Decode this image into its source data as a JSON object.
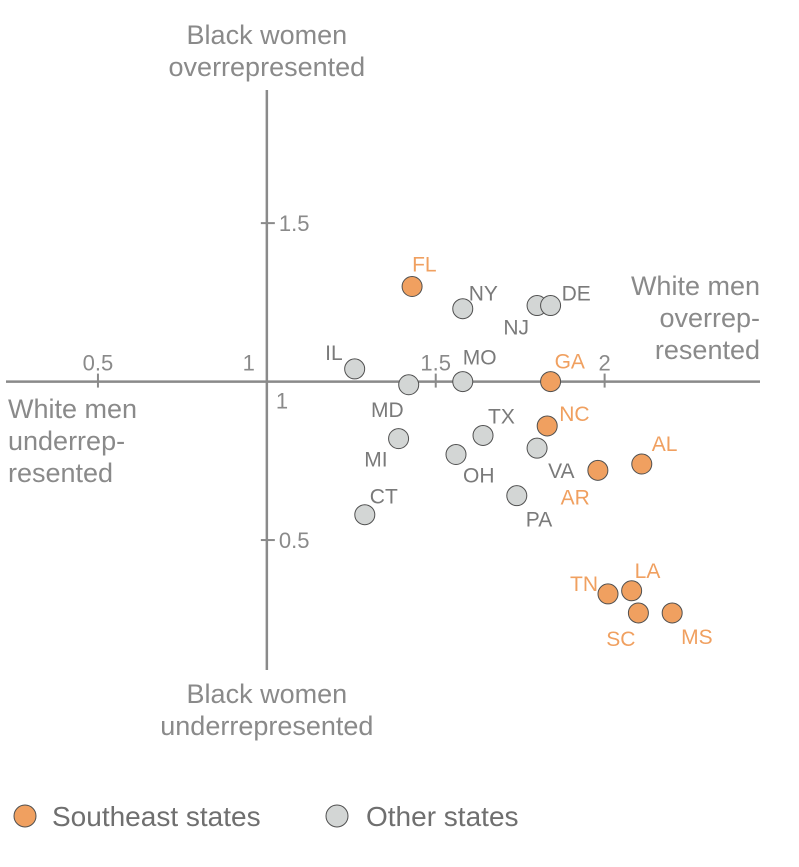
{
  "chart_data": {
    "type": "scatter",
    "axis_titles": {
      "top": [
        "Black women",
        "overrepresented"
      ],
      "bottom": [
        "Black women",
        "underrepresented"
      ],
      "right": [
        "White men",
        "overrep-",
        "resented"
      ],
      "left": [
        "White men",
        "underrep-",
        "resented"
      ]
    },
    "x_ticks": [
      {
        "value": 0.5,
        "label": "0.5"
      },
      {
        "value": 1,
        "label": "1"
      },
      {
        "value": 1.5,
        "label": "1.5"
      },
      {
        "value": 2,
        "label": "2"
      }
    ],
    "y_ticks": [
      {
        "value": 1.5,
        "label": "1.5"
      },
      {
        "value": 1,
        "label": "1"
      },
      {
        "value": 0.5,
        "label": "0.5"
      }
    ],
    "xlim": [
      0.21,
      2.46
    ],
    "ylim": [
      0.09,
      1.92
    ],
    "series": [
      {
        "name": "Southeast states",
        "color": "#f0a060",
        "label_color": "#f0a060",
        "points": [
          {
            "label": "FL",
            "x": 1.43,
            "y": 1.3
          },
          {
            "label": "GA",
            "x": 1.84,
            "y": 1.0
          },
          {
            "label": "NC",
            "x": 1.83,
            "y": 0.86
          },
          {
            "label": "AL",
            "x": 2.11,
            "y": 0.74
          },
          {
            "label": "AR",
            "x": 1.98,
            "y": 0.72
          },
          {
            "label": "TN",
            "x": 2.01,
            "y": 0.33
          },
          {
            "label": "LA",
            "x": 2.08,
            "y": 0.34
          },
          {
            "label": "SC",
            "x": 2.1,
            "y": 0.27
          },
          {
            "label": "MS",
            "x": 2.2,
            "y": 0.27
          }
        ]
      },
      {
        "name": "Other states",
        "color": "#d3d6d5",
        "label_color": "#7a7a7a",
        "points": [
          {
            "label": "NY",
            "x": 1.58,
            "y": 1.23
          },
          {
            "label": "NJ",
            "x": 1.8,
            "y": 1.24
          },
          {
            "label": "DE",
            "x": 1.84,
            "y": 1.24
          },
          {
            "label": "IL",
            "x": 1.26,
            "y": 1.04
          },
          {
            "label": "MD",
            "x": 1.42,
            "y": 0.99
          },
          {
            "label": "MO",
            "x": 1.58,
            "y": 1.0
          },
          {
            "label": "TX",
            "x": 1.64,
            "y": 0.83
          },
          {
            "label": "MI",
            "x": 1.39,
            "y": 0.82
          },
          {
            "label": "OH",
            "x": 1.56,
            "y": 0.77
          },
          {
            "label": "VA",
            "x": 1.8,
            "y": 0.79
          },
          {
            "label": "PA",
            "x": 1.74,
            "y": 0.64
          },
          {
            "label": "CT",
            "x": 1.29,
            "y": 0.58
          }
        ]
      }
    ],
    "legend": {
      "placement": "bottom-left",
      "items": [
        {
          "label": "Southeast states",
          "color": "#f0a060"
        },
        {
          "label": "Other states",
          "color": "#d3d6d5"
        }
      ]
    }
  }
}
